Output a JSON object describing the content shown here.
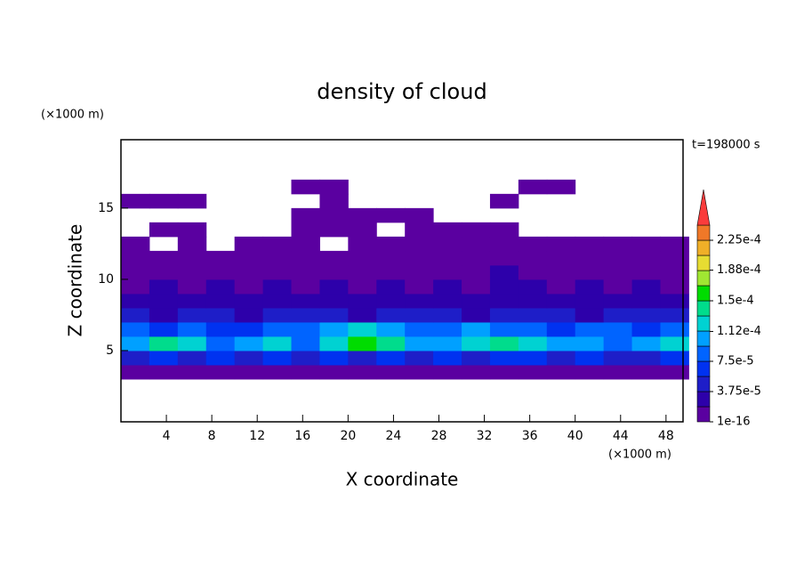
{
  "chart_data": {
    "type": "contour",
    "title": "density of cloud",
    "x_label": "X coordinate",
    "y_label": "Z coordinate",
    "x_unit": "(×1000 m)",
    "y_unit": "(×1000 m)",
    "annotation": "t=198000 s",
    "xlim": [
      0,
      49.5
    ],
    "ylim": [
      0,
      19.8
    ],
    "xticks": [
      4,
      8,
      12,
      16,
      20,
      24,
      28,
      32,
      36,
      40,
      44,
      48
    ],
    "yticks": [
      5,
      10,
      15
    ],
    "x": [
      1.25,
      3.75,
      6.25,
      8.75,
      11.25,
      13.75,
      16.25,
      18.75,
      21.25,
      23.75,
      26.25,
      28.75,
      31.25,
      33.75,
      36.25,
      38.75,
      41.25,
      43.75,
      46.25,
      48.75
    ],
    "y": [
      3.5,
      4.5,
      5.5,
      6.5,
      7.5,
      8.5,
      9.5,
      10.5,
      11.5,
      12.5,
      13.5,
      14.5,
      15.5,
      16.5
    ],
    "z": [
      [
        5e-06,
        5e-06,
        5e-06,
        5e-06,
        5e-06,
        5e-06,
        5e-06,
        5e-06,
        5e-06,
        5e-06,
        5e-06,
        5e-06,
        5e-06,
        5e-06,
        5e-06,
        5e-06,
        5e-06,
        5e-06,
        5e-06,
        5e-06
      ],
      [
        4e-05,
        6e-05,
        5e-05,
        7e-05,
        4e-05,
        6e-05,
        5e-05,
        6e-05,
        4e-05,
        7e-05,
        5e-05,
        6e-05,
        4e-05,
        6e-05,
        7e-05,
        5e-05,
        6e-05,
        4e-05,
        5e-05,
        6e-05
      ],
      [
        0.00011,
        0.00014,
        0.00012,
        9e-05,
        0.0001,
        0.00012,
        9e-05,
        0.00013,
        0.00016,
        0.00014,
        0.0001,
        0.00011,
        0.00013,
        0.00014,
        0.00012,
        0.0001,
        0.00011,
        9e-05,
        0.0001,
        0.00012
      ],
      [
        9e-05,
        7e-05,
        8e-05,
        6e-05,
        7e-05,
        8e-05,
        9e-05,
        0.00011,
        0.00013,
        0.0001,
        8e-05,
        9e-05,
        0.0001,
        9e-05,
        8e-05,
        7e-05,
        8e-05,
        9e-05,
        7e-05,
        8e-05
      ],
      [
        4e-05,
        3e-05,
        5e-05,
        4e-05,
        3e-05,
        4e-05,
        5e-05,
        4e-05,
        3e-05,
        4e-05,
        5e-05,
        4e-05,
        3e-05,
        4e-05,
        5e-05,
        4e-05,
        3e-05,
        4e-05,
        5e-05,
        4e-05
      ],
      [
        2e-05,
        3e-05,
        2e-05,
        3e-05,
        2e-05,
        3e-05,
        2e-05,
        3e-05,
        2e-05,
        3e-05,
        2e-05,
        3e-05,
        2e-05,
        3e-05,
        2e-05,
        3e-05,
        2e-05,
        3e-05,
        2e-05,
        3e-05
      ],
      [
        1.5e-05,
        2e-05,
        1.5e-05,
        2e-05,
        1.5e-05,
        2e-05,
        1.5e-05,
        2e-05,
        1.5e-05,
        2e-05,
        1.5e-05,
        2e-05,
        1.5e-05,
        2e-05,
        2e-05,
        1.5e-05,
        2e-05,
        1.5e-05,
        2e-05,
        1.5e-05
      ],
      [
        1e-05,
        1.5e-05,
        1e-05,
        1.5e-05,
        1e-05,
        1.5e-05,
        1e-05,
        1.5e-05,
        1e-05,
        1e-05,
        1.5e-05,
        1e-05,
        1.5e-05,
        2e-05,
        1.5e-05,
        1e-05,
        1.5e-05,
        1e-05,
        1.5e-05,
        1e-05
      ],
      [
        5e-06,
        1e-05,
        5e-06,
        1e-05,
        5e-06,
        1e-05,
        5e-06,
        5e-06,
        1e-05,
        5e-06,
        5e-06,
        1e-05,
        5e-06,
        1e-05,
        5e-06,
        1e-05,
        5e-06,
        5e-06,
        1e-05,
        5e-06
      ],
      [
        5e-06,
        null,
        5e-06,
        null,
        5e-06,
        5e-06,
        5e-06,
        null,
        5e-06,
        5e-06,
        5e-06,
        5e-06,
        5e-06,
        5e-06,
        5e-06,
        5e-06,
        5e-06,
        5e-06,
        5e-06,
        5e-06
      ],
      [
        null,
        3e-06,
        3e-06,
        null,
        null,
        null,
        4e-06,
        4e-06,
        5e-06,
        null,
        4e-06,
        4e-06,
        4e-06,
        3e-06,
        null,
        null,
        null,
        null,
        null,
        null
      ],
      [
        null,
        null,
        null,
        null,
        null,
        null,
        4e-06,
        5e-06,
        5e-06,
        4e-06,
        3e-06,
        null,
        null,
        null,
        null,
        null,
        null,
        null,
        null,
        null
      ],
      [
        3e-06,
        3e-06,
        3e-06,
        null,
        null,
        null,
        null,
        3e-06,
        null,
        null,
        null,
        null,
        null,
        3e-06,
        null,
        null,
        null,
        null,
        null,
        null
      ],
      [
        null,
        null,
        null,
        null,
        null,
        null,
        4e-06,
        4e-06,
        null,
        null,
        null,
        null,
        null,
        null,
        4e-06,
        4e-06,
        null,
        null,
        null,
        null
      ]
    ],
    "levels": [
      1e-16,
      1.875e-05,
      3.75e-05,
      5.625e-05,
      7.5e-05,
      9.375e-05,
      0.0001125,
      0.00013125,
      0.00015,
      0.00016875,
      0.0001875,
      0.00020625,
      0.000225,
      0.00024375
    ],
    "colors": [
      "#5a00a0",
      "#2d00aa",
      "#1e1ec8",
      "#0032f0",
      "#0064ff",
      "#00a0ff",
      "#00d2d2",
      "#00dc8c",
      "#00dc00",
      "#a0e632",
      "#e6dc32",
      "#f0af28",
      "#f07828",
      "#fa3c3c",
      "#f0a0a0"
    ],
    "colorbar_ticks": [
      {
        "value": 1e-16,
        "label": "1e-16"
      },
      {
        "value": 3.75e-05,
        "label": "3.75e-5"
      },
      {
        "value": 7.5e-05,
        "label": "7.5e-5"
      },
      {
        "value": 0.000112,
        "label": "1.12e-4"
      },
      {
        "value": 0.00015,
        "label": "1.5e-4"
      },
      {
        "value": 0.000188,
        "label": "1.88e-4"
      },
      {
        "value": 0.000225,
        "label": "2.25e-4"
      }
    ]
  }
}
